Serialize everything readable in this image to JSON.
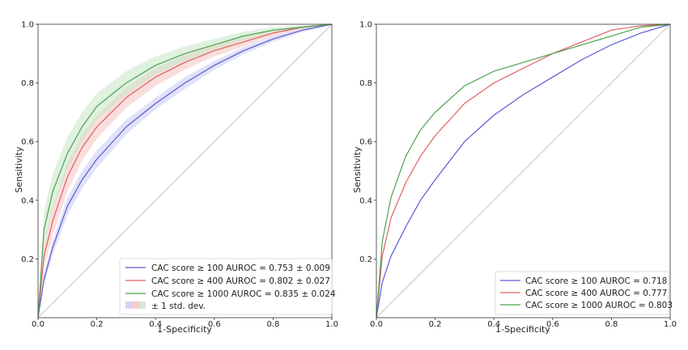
{
  "colors": {
    "cac100": "#5a5ad6",
    "cac400": "#e06060",
    "cac1000": "#4ea24e",
    "band100": "#c8c8f2",
    "band400": "#f6c2c2",
    "band1000": "#c6e6c6",
    "diagonal": "#c4c4c4",
    "frame": "#333333"
  },
  "chart_data": [
    {
      "type": "line",
      "title": "",
      "xlabel": "1-Specificity",
      "ylabel": "Sensitivity",
      "xlim": [
        0,
        1
      ],
      "ylim": [
        0,
        1
      ],
      "xticks": [
        "0.0",
        "0.2",
        "0.4",
        "0.6",
        "0.8",
        "1.0"
      ],
      "yticks": [
        "0.2",
        "0.4",
        "0.6",
        "0.8",
        "1.0"
      ],
      "grid": false,
      "legend_position": "bottom-right",
      "x": [
        0,
        0.02,
        0.05,
        0.1,
        0.15,
        0.2,
        0.3,
        0.4,
        0.5,
        0.6,
        0.7,
        0.8,
        0.9,
        1.0
      ],
      "series": [
        {
          "name": "CAC score ≥ 100 AUROC = 0.753 ± 0.009",
          "color_key": "cac100",
          "values": [
            0,
            0.13,
            0.24,
            0.38,
            0.47,
            0.54,
            0.65,
            0.73,
            0.8,
            0.86,
            0.91,
            0.95,
            0.98,
            1.0
          ],
          "std": [
            0,
            0.02,
            0.025,
            0.03,
            0.03,
            0.03,
            0.025,
            0.02,
            0.02,
            0.015,
            0.012,
            0.01,
            0.006,
            0
          ]
        },
        {
          "name": "CAC score ≥ 400 AUROC = 0.802 ± 0.027",
          "color_key": "cac400",
          "values": [
            0,
            0.21,
            0.33,
            0.48,
            0.58,
            0.65,
            0.75,
            0.82,
            0.87,
            0.91,
            0.94,
            0.97,
            0.99,
            1.0
          ],
          "std": [
            0,
            0.04,
            0.05,
            0.05,
            0.045,
            0.04,
            0.035,
            0.03,
            0.025,
            0.02,
            0.015,
            0.01,
            0.006,
            0
          ]
        },
        {
          "name": "CAC score ≥ 1000 AUROC = 0.835 ± 0.024",
          "color_key": "cac1000",
          "values": [
            0,
            0.3,
            0.43,
            0.56,
            0.65,
            0.72,
            0.8,
            0.86,
            0.9,
            0.93,
            0.96,
            0.98,
            0.99,
            1.0
          ],
          "std": [
            0,
            0.06,
            0.06,
            0.055,
            0.05,
            0.045,
            0.04,
            0.03,
            0.025,
            0.02,
            0.015,
            0.01,
            0.006,
            0
          ]
        }
      ],
      "band_legend": "± 1 std. dev."
    },
    {
      "type": "line",
      "title": "",
      "xlabel": "1-Specificity",
      "ylabel": "Sensitivity",
      "xlim": [
        0,
        1
      ],
      "ylim": [
        0,
        1
      ],
      "xticks": [
        "0.0",
        "0.2",
        "0.4",
        "0.6",
        "0.8",
        "1.0"
      ],
      "yticks": [
        "0.2",
        "0.4",
        "0.6",
        "0.8",
        "1.0"
      ],
      "grid": false,
      "legend_position": "bottom-right",
      "x": [
        0,
        0.02,
        0.05,
        0.1,
        0.15,
        0.2,
        0.3,
        0.4,
        0.5,
        0.6,
        0.7,
        0.8,
        0.9,
        1.0
      ],
      "series": [
        {
          "name": "CAC score ≥ 100 AUROC = 0.718",
          "color_key": "cac100",
          "values": [
            0,
            0.12,
            0.21,
            0.31,
            0.4,
            0.47,
            0.6,
            0.69,
            0.76,
            0.82,
            0.88,
            0.93,
            0.97,
            1.0
          ]
        },
        {
          "name": "CAC score ≥ 400 AUROC = 0.777",
          "color_key": "cac400",
          "values": [
            0,
            0.21,
            0.34,
            0.46,
            0.55,
            0.62,
            0.73,
            0.8,
            0.85,
            0.9,
            0.94,
            0.98,
            0.995,
            1.0
          ]
        },
        {
          "name": "CAC score ≥ 1000 AUROC = 0.803",
          "color_key": "cac1000",
          "values": [
            0,
            0.26,
            0.41,
            0.55,
            0.64,
            0.7,
            0.79,
            0.84,
            0.87,
            0.9,
            0.93,
            0.96,
            0.99,
            1.0
          ]
        }
      ]
    }
  ]
}
